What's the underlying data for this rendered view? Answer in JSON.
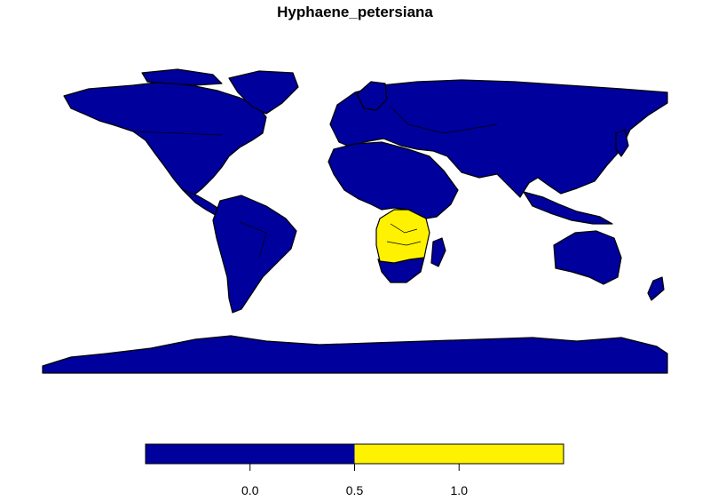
{
  "title": "Hyphaene_petersiana",
  "colors": {
    "absent": "#00009c",
    "present": "#fff200",
    "border": "#000000",
    "background": "#ffffff"
  },
  "legend": {
    "type": "colorbar",
    "range": [
      -0.5,
      1.5
    ],
    "segments": [
      {
        "from": -0.5,
        "to": 0.5,
        "color": "#00009c"
      },
      {
        "from": 0.5,
        "to": 1.5,
        "color": "#fff200"
      }
    ],
    "ticks": [
      {
        "value": 0.0,
        "label": "0.0"
      },
      {
        "value": 0.5,
        "label": "0.5"
      },
      {
        "value": 1.0,
        "label": "1.0"
      }
    ]
  },
  "map": {
    "projection": "equirectangular",
    "present_region": "southern Africa"
  }
}
